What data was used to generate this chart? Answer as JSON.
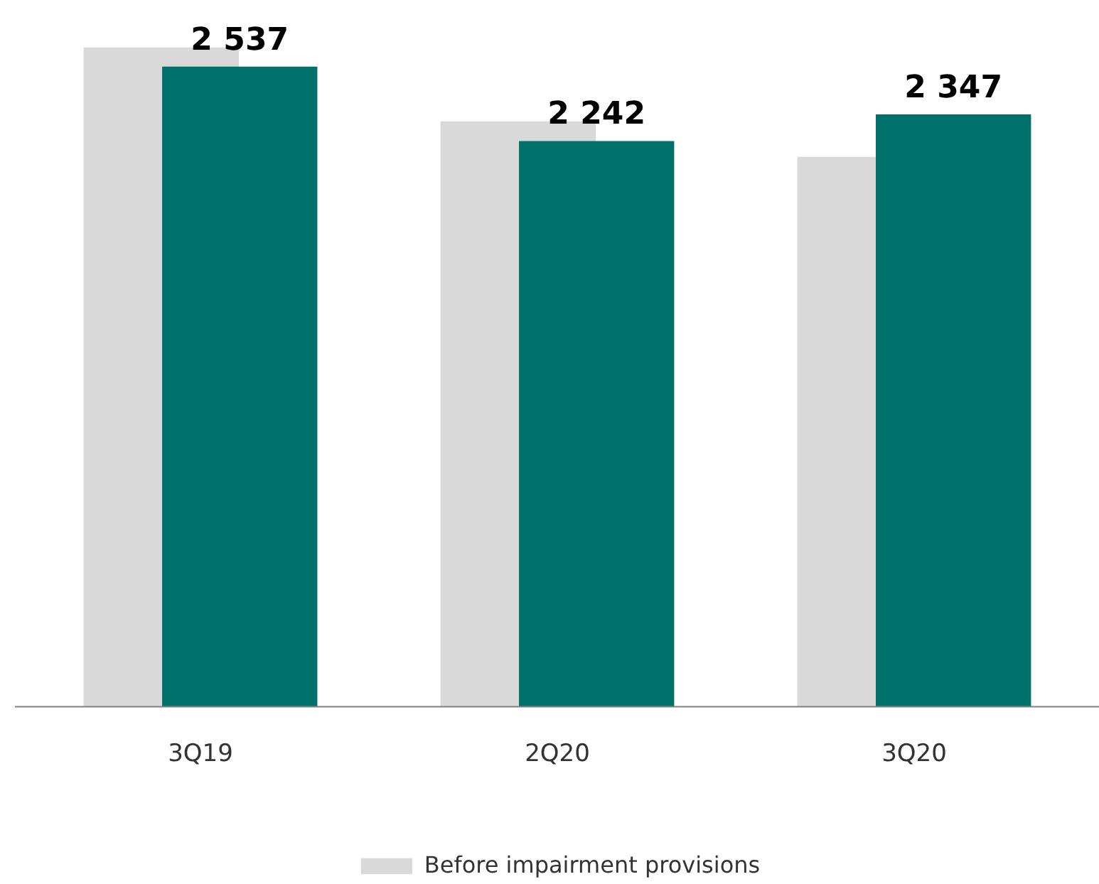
{
  "chart_data": {
    "type": "bar",
    "categories": [
      "3Q19",
      "2Q20",
      "3Q20"
    ],
    "series": [
      {
        "name": "Before impairment provisions",
        "color": "#d9d9d9",
        "values": [
          2613,
          2320,
          2179
        ]
      },
      {
        "color": "#00706b",
        "values": [
          2537,
          2242,
          2347
        ],
        "value_labels": [
          "2 537",
          "2 242",
          "2 347"
        ]
      }
    ],
    "legend": "bottom",
    "grid": false
  }
}
